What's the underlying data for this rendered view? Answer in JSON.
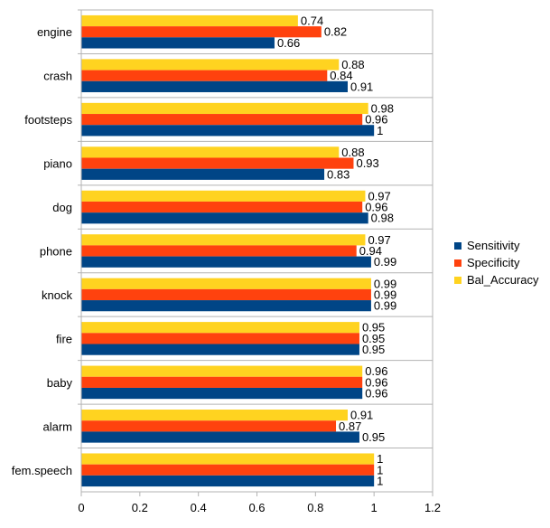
{
  "chart_data": {
    "type": "bar",
    "orientation": "horizontal",
    "categories": [
      "engine",
      "crash",
      "footsteps",
      "piano",
      "dog",
      "phone",
      "knock",
      "fire",
      "baby",
      "alarm",
      "fem.speech"
    ],
    "series": [
      {
        "name": "Sensitivity",
        "color": "#004586",
        "values": [
          0.66,
          0.91,
          1,
          0.83,
          0.98,
          0.99,
          0.99,
          0.95,
          0.96,
          0.95,
          1
        ]
      },
      {
        "name": "Specificity",
        "color": "#ff420e",
        "values": [
          0.82,
          0.84,
          0.96,
          0.93,
          0.96,
          0.94,
          0.99,
          0.95,
          0.96,
          0.87,
          1
        ]
      },
      {
        "name": "Bal_Accuracy",
        "color": "#ffd320",
        "values": [
          0.74,
          0.88,
          0.98,
          0.88,
          0.97,
          0.97,
          0.99,
          0.95,
          0.96,
          0.91,
          1
        ]
      }
    ],
    "value_labels": {
      "Sensitivity": [
        "0.66",
        "0.91",
        "1",
        "0.83",
        "0.98",
        "0.99",
        "0.99",
        "0.95",
        "0.96",
        "0.95",
        "1"
      ],
      "Specificity": [
        "0.82",
        "0.84",
        "0.96",
        "0.93",
        "0.96",
        "0.94",
        "0.99",
        "0.95",
        "0.96",
        "0.87",
        "1"
      ],
      "Bal_Accuracy": [
        "0.74",
        "0.88",
        "0.98",
        "0.88",
        "0.97",
        "0.97",
        "0.99",
        "0.95",
        "0.96",
        "0.91",
        "1"
      ]
    },
    "x_ticks": [
      "0",
      "0.2",
      "0.4",
      "0.6",
      "0.8",
      "1",
      "1.2"
    ],
    "xlim": [
      0,
      1.2
    ],
    "grid": "category separators",
    "legend_position": "right",
    "title": "",
    "xlabel": "",
    "ylabel": ""
  }
}
